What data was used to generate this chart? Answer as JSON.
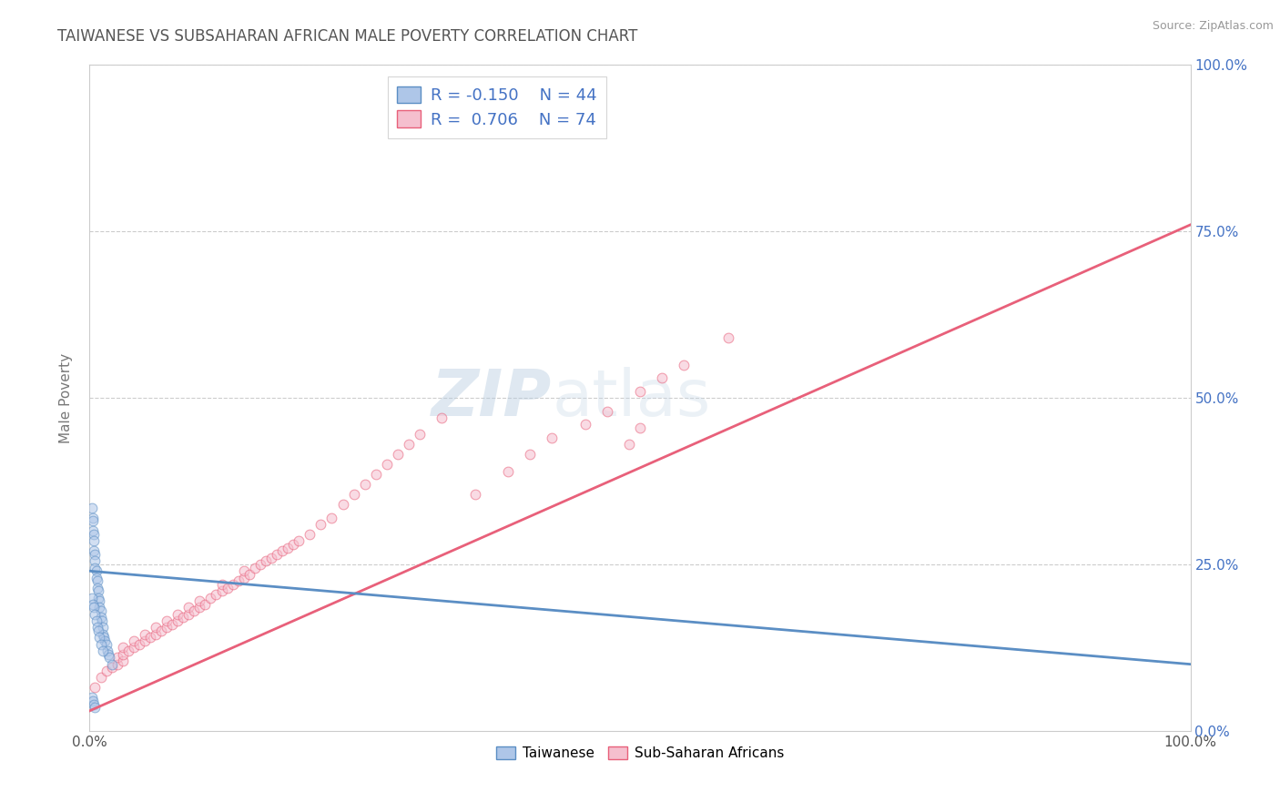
{
  "title": "TAIWANESE VS SUBSAHARAN AFRICAN MALE POVERTY CORRELATION CHART",
  "source": "Source: ZipAtlas.com",
  "ylabel": "Male Poverty",
  "background_color": "#ffffff",
  "plot_bg_color": "#ffffff",
  "grid_color": "#cccccc",
  "title_color": "#555555",
  "source_color": "#999999",
  "taiwanese_R": -0.15,
  "taiwanese_N": 44,
  "subsaharan_R": 0.706,
  "subsaharan_N": 74,
  "taiwanese_color": "#aec6e8",
  "subsaharan_color": "#f5bfce",
  "taiwanese_line_color": "#5b8ec4",
  "subsaharan_line_color": "#e8607a",
  "legend_taiwanese": "Taiwanese",
  "legend_subsaharan": "Sub-Saharan Africans",
  "legend_R_color": "#4472c4",
  "legend_N_color": "#4472c4",
  "taiwanese_x": [
    0.002,
    0.003,
    0.003,
    0.003,
    0.004,
    0.004,
    0.004,
    0.005,
    0.005,
    0.005,
    0.006,
    0.006,
    0.007,
    0.007,
    0.008,
    0.008,
    0.009,
    0.009,
    0.01,
    0.01,
    0.011,
    0.012,
    0.012,
    0.013,
    0.014,
    0.015,
    0.016,
    0.017,
    0.018,
    0.02,
    0.002,
    0.003,
    0.004,
    0.005,
    0.006,
    0.007,
    0.008,
    0.009,
    0.01,
    0.012,
    0.002,
    0.003,
    0.004,
    0.005
  ],
  "taiwanese_y": [
    0.335,
    0.32,
    0.315,
    0.3,
    0.295,
    0.285,
    0.27,
    0.265,
    0.255,
    0.245,
    0.24,
    0.23,
    0.225,
    0.215,
    0.21,
    0.2,
    0.195,
    0.185,
    0.18,
    0.17,
    0.165,
    0.155,
    0.145,
    0.14,
    0.135,
    0.13,
    0.12,
    0.115,
    0.11,
    0.1,
    0.2,
    0.19,
    0.185,
    0.175,
    0.165,
    0.155,
    0.15,
    0.14,
    0.13,
    0.12,
    0.05,
    0.045,
    0.04,
    0.035
  ],
  "subsaharan_x": [
    0.005,
    0.01,
    0.015,
    0.02,
    0.025,
    0.025,
    0.03,
    0.03,
    0.03,
    0.035,
    0.04,
    0.04,
    0.045,
    0.05,
    0.05,
    0.055,
    0.06,
    0.06,
    0.065,
    0.07,
    0.07,
    0.075,
    0.08,
    0.08,
    0.085,
    0.09,
    0.09,
    0.095,
    0.1,
    0.1,
    0.105,
    0.11,
    0.115,
    0.12,
    0.12,
    0.125,
    0.13,
    0.135,
    0.14,
    0.14,
    0.145,
    0.15,
    0.155,
    0.16,
    0.165,
    0.17,
    0.175,
    0.18,
    0.185,
    0.19,
    0.2,
    0.21,
    0.22,
    0.23,
    0.24,
    0.25,
    0.26,
    0.27,
    0.28,
    0.29,
    0.3,
    0.32,
    0.35,
    0.38,
    0.4,
    0.42,
    0.45,
    0.47,
    0.5,
    0.52,
    0.54,
    0.58,
    0.49,
    0.5
  ],
  "subsaharan_y": [
    0.065,
    0.08,
    0.09,
    0.095,
    0.1,
    0.11,
    0.105,
    0.115,
    0.125,
    0.12,
    0.125,
    0.135,
    0.13,
    0.135,
    0.145,
    0.14,
    0.145,
    0.155,
    0.15,
    0.155,
    0.165,
    0.16,
    0.165,
    0.175,
    0.17,
    0.175,
    0.185,
    0.18,
    0.185,
    0.195,
    0.19,
    0.2,
    0.205,
    0.21,
    0.22,
    0.215,
    0.22,
    0.225,
    0.23,
    0.24,
    0.235,
    0.245,
    0.25,
    0.255,
    0.26,
    0.265,
    0.27,
    0.275,
    0.28,
    0.285,
    0.295,
    0.31,
    0.32,
    0.34,
    0.355,
    0.37,
    0.385,
    0.4,
    0.415,
    0.43,
    0.445,
    0.47,
    0.355,
    0.39,
    0.415,
    0.44,
    0.46,
    0.48,
    0.51,
    0.53,
    0.55,
    0.59,
    0.43,
    0.455
  ],
  "xlim": [
    0.0,
    1.0
  ],
  "ylim": [
    0.0,
    1.0
  ],
  "xtick_vals": [
    0.0,
    1.0
  ],
  "xtick_labels": [
    "0.0%",
    "100.0%"
  ],
  "ytick_vals": [
    0.0,
    0.25,
    0.5,
    0.75,
    1.0
  ],
  "ytick_labels_right": [
    "0.0%",
    "25.0%",
    "50.0%",
    "75.0%",
    "100.0%"
  ],
  "marker_size": 60,
  "marker_alpha": 0.55,
  "line_width": 2.0,
  "ss_line_x0": 0.0,
  "ss_line_y0": 0.03,
  "ss_line_x1": 1.0,
  "ss_line_y1": 0.76,
  "tw_line_x0": 0.0,
  "tw_line_y0": 0.24,
  "tw_line_x1": 1.0,
  "tw_line_y1": 0.1
}
